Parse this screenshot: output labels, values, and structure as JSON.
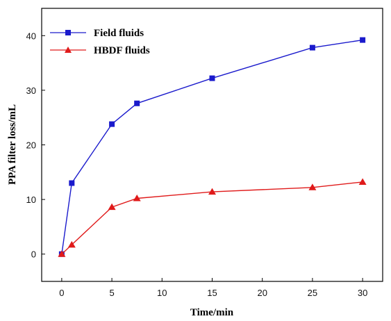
{
  "chart_data": {
    "type": "line",
    "xlabel": "Time/min",
    "ylabel": "PPA filter loss/mL",
    "xlim": [
      -2,
      32
    ],
    "ylim": [
      -5,
      45
    ],
    "xticks": [
      0,
      5,
      10,
      15,
      20,
      25,
      30
    ],
    "yticks": [
      0,
      10,
      20,
      30,
      40
    ],
    "grid": false,
    "legend_position": "top-left",
    "series": [
      {
        "name": "Field fluids",
        "color": "#1a1acc",
        "marker": "square",
        "x": [
          0,
          1,
          5,
          7.5,
          15,
          25,
          30
        ],
        "y": [
          0,
          13.0,
          23.8,
          27.6,
          32.2,
          37.8,
          39.2
        ]
      },
      {
        "name": "HBDF fluids",
        "color": "#e01a1a",
        "marker": "triangle",
        "x": [
          0,
          1,
          5,
          7.5,
          15,
          25,
          30
        ],
        "y": [
          0,
          1.7,
          8.6,
          10.2,
          11.4,
          12.2,
          13.2
        ]
      }
    ]
  }
}
